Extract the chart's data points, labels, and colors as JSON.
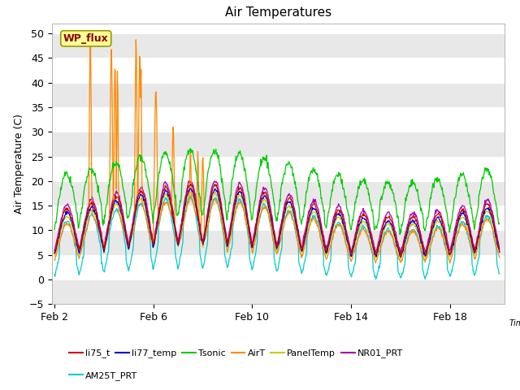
{
  "title": "Air Temperatures",
  "xlabel": "Time",
  "ylabel": "Air Temperature (C)",
  "ylim": [
    -5,
    52
  ],
  "xlim": [
    1.9,
    20.2
  ],
  "yticks": [
    -5,
    0,
    5,
    10,
    15,
    20,
    25,
    30,
    35,
    40,
    45,
    50
  ],
  "xtick_labels": [
    "Feb 2",
    "Feb 6",
    "Feb 10",
    "Feb 14",
    "Feb 18"
  ],
  "xtick_positions": [
    2,
    6,
    10,
    14,
    18
  ],
  "colors": {
    "li75_t": "#cc0000",
    "li77_temp": "#0000cc",
    "Tsonic": "#00cc00",
    "AirT": "#ff8800",
    "PanelTemp": "#cccc00",
    "NR01_PRT": "#aa00aa",
    "AM25T_PRT": "#00cccc"
  },
  "legend_label": "WP_flux",
  "fig_bg_color": "#ffffff",
  "plot_bg_color": "#ffffff",
  "grid_stripe_color": "#e8e8e8",
  "wp_flux_box_color": "#ffff99",
  "wp_flux_text_color": "#880000",
  "wp_flux_box_edge": "#999900",
  "title_fontsize": 11,
  "axis_fontsize": 9,
  "tick_fontsize": 9
}
